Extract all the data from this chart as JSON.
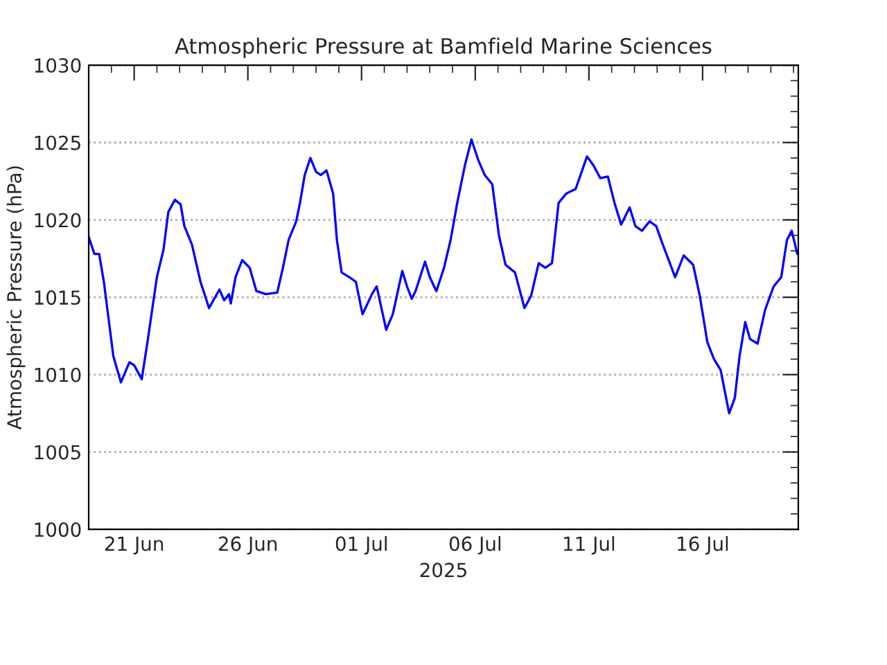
{
  "chart_data": {
    "type": "line",
    "title": "Atmospheric Pressure at Bamfield Marine Sciences",
    "xlabel": "2025",
    "ylabel": "Atmospheric Pressure (hPa)",
    "x": [
      "2025-06-19T00:00",
      "2025-06-19T06:00",
      "2025-06-19T11:00",
      "2025-06-19T16:00",
      "2025-06-19T21:00",
      "2025-06-20T02:00",
      "2025-06-20T10:00",
      "2025-06-20T19:00",
      "2025-06-21T00:00",
      "2025-06-21T08:00",
      "2025-06-21T14:00",
      "2025-06-22T00:00",
      "2025-06-22T07:00",
      "2025-06-22T12:00",
      "2025-06-22T19:00",
      "2025-06-23T01:00",
      "2025-06-23T05:00",
      "2025-06-23T13:00",
      "2025-06-23T22:00",
      "2025-06-24T07:00",
      "2025-06-24T18:00",
      "2025-06-24T23:00",
      "2025-06-25T04:00",
      "2025-06-25T06:00",
      "2025-06-25T11:00",
      "2025-06-25T18:00",
      "2025-06-26T02:00",
      "2025-06-26T09:00",
      "2025-06-26T19:00",
      "2025-06-27T07:00",
      "2025-06-27T13:00",
      "2025-06-27T19:00",
      "2025-06-28T03:00",
      "2025-06-28T07:00",
      "2025-06-28T12:00",
      "2025-06-28T18:00",
      "2025-06-29T00:00",
      "2025-06-29T05:00",
      "2025-06-29T11:00",
      "2025-06-29T18:00",
      "2025-06-29T22:00",
      "2025-06-30T03:00",
      "2025-06-30T11:00",
      "2025-06-30T18:00",
      "2025-07-01T01:00",
      "2025-07-01T11:00",
      "2025-07-01T16:00",
      "2025-07-02T02:00",
      "2025-07-02T09:00",
      "2025-07-02T19:00",
      "2025-07-03T00:00",
      "2025-07-03T05:00",
      "2025-07-03T09:00",
      "2025-07-03T19:00",
      "2025-07-04T00:00",
      "2025-07-04T07:00",
      "2025-07-04T15:00",
      "2025-07-04T22:00",
      "2025-07-05T05:00",
      "2025-07-05T13:00",
      "2025-07-05T20:00",
      "2025-07-06T03:00",
      "2025-07-06T10:00",
      "2025-07-06T18:00",
      "2025-07-07T01:00",
      "2025-07-07T08:00",
      "2025-07-07T18:00",
      "2025-07-08T04:00",
      "2025-07-08T11:00",
      "2025-07-08T19:00",
      "2025-07-09T02:00",
      "2025-07-09T09:00",
      "2025-07-09T16:00",
      "2025-07-10T00:00",
      "2025-07-10T10:00",
      "2025-07-10T22:00",
      "2025-07-11T05:00",
      "2025-07-11T12:00",
      "2025-07-11T20:00",
      "2025-07-12T03:00",
      "2025-07-12T10:00",
      "2025-07-12T19:00",
      "2025-07-13T01:00",
      "2025-07-13T08:00",
      "2025-07-13T16:00",
      "2025-07-13T23:00",
      "2025-07-14T06:00",
      "2025-07-14T19:00",
      "2025-07-15T04:00",
      "2025-07-15T14:00",
      "2025-07-15T21:00",
      "2025-07-16T05:00",
      "2025-07-16T12:00",
      "2025-07-16T19:00",
      "2025-07-17T04:00",
      "2025-07-17T10:00",
      "2025-07-17T15:00",
      "2025-07-17T21:00",
      "2025-07-18T02:00",
      "2025-07-18T10:00",
      "2025-07-18T18:00",
      "2025-07-19T03:00",
      "2025-07-19T11:00",
      "2025-07-19T17:00",
      "2025-07-19T22:00",
      "2025-07-20T04:00"
    ],
    "series": [
      {
        "color": "#0000ff",
        "values": [
          1018.9,
          1017.8,
          1017.8,
          1016.0,
          1013.6,
          1011.2,
          1009.5,
          1010.8,
          1010.6,
          1009.7,
          1012.1,
          1016.3,
          1018.1,
          1020.5,
          1021.3,
          1021.0,
          1019.6,
          1018.4,
          1016.0,
          1014.3,
          1015.5,
          1014.8,
          1015.2,
          1014.6,
          1016.3,
          1017.4,
          1016.9,
          1015.4,
          1015.2,
          1015.3,
          1016.9,
          1018.7,
          1019.9,
          1021.1,
          1022.9,
          1024.0,
          1023.1,
          1022.9,
          1023.2,
          1021.7,
          1018.7,
          1016.6,
          1016.3,
          1016.0,
          1013.9,
          1015.2,
          1015.7,
          1012.9,
          1013.9,
          1016.7,
          1015.7,
          1014.9,
          1015.4,
          1017.3,
          1016.3,
          1015.4,
          1016.9,
          1018.7,
          1021.1,
          1023.5,
          1025.2,
          1023.9,
          1022.9,
          1022.3,
          1019.0,
          1017.1,
          1016.6,
          1014.3,
          1015.1,
          1017.2,
          1016.9,
          1017.2,
          1021.1,
          1021.7,
          1022.0,
          1024.1,
          1023.5,
          1022.7,
          1022.8,
          1021.1,
          1019.7,
          1020.8,
          1019.6,
          1019.3,
          1019.9,
          1019.6,
          1018.4,
          1016.3,
          1017.7,
          1017.1,
          1015.1,
          1012.1,
          1011.0,
          1010.3,
          1007.5,
          1008.5,
          1011.2,
          1013.4,
          1012.3,
          1012.0,
          1014.2,
          1015.7,
          1016.3,
          1018.7,
          1019.3,
          1017.8
        ]
      }
    ],
    "xlim": [
      "2025-06-19T00:00",
      "2025-07-20T05:00"
    ],
    "xticks": [
      {
        "value": "2025-06-21",
        "label": "21 Jun"
      },
      {
        "value": "2025-06-26",
        "label": "26 Jun"
      },
      {
        "value": "2025-07-01",
        "label": "01 Jul"
      },
      {
        "value": "2025-07-06",
        "label": "06 Jul"
      },
      {
        "value": "2025-07-11",
        "label": "11 Jul"
      },
      {
        "value": "2025-07-16",
        "label": "16 Jul"
      }
    ],
    "ylim": [
      1000,
      1030
    ],
    "yticks": [
      1000,
      1005,
      1010,
      1015,
      1020,
      1025,
      1030
    ],
    "grid": "y",
    "marker": "none",
    "line_style": "solid"
  }
}
